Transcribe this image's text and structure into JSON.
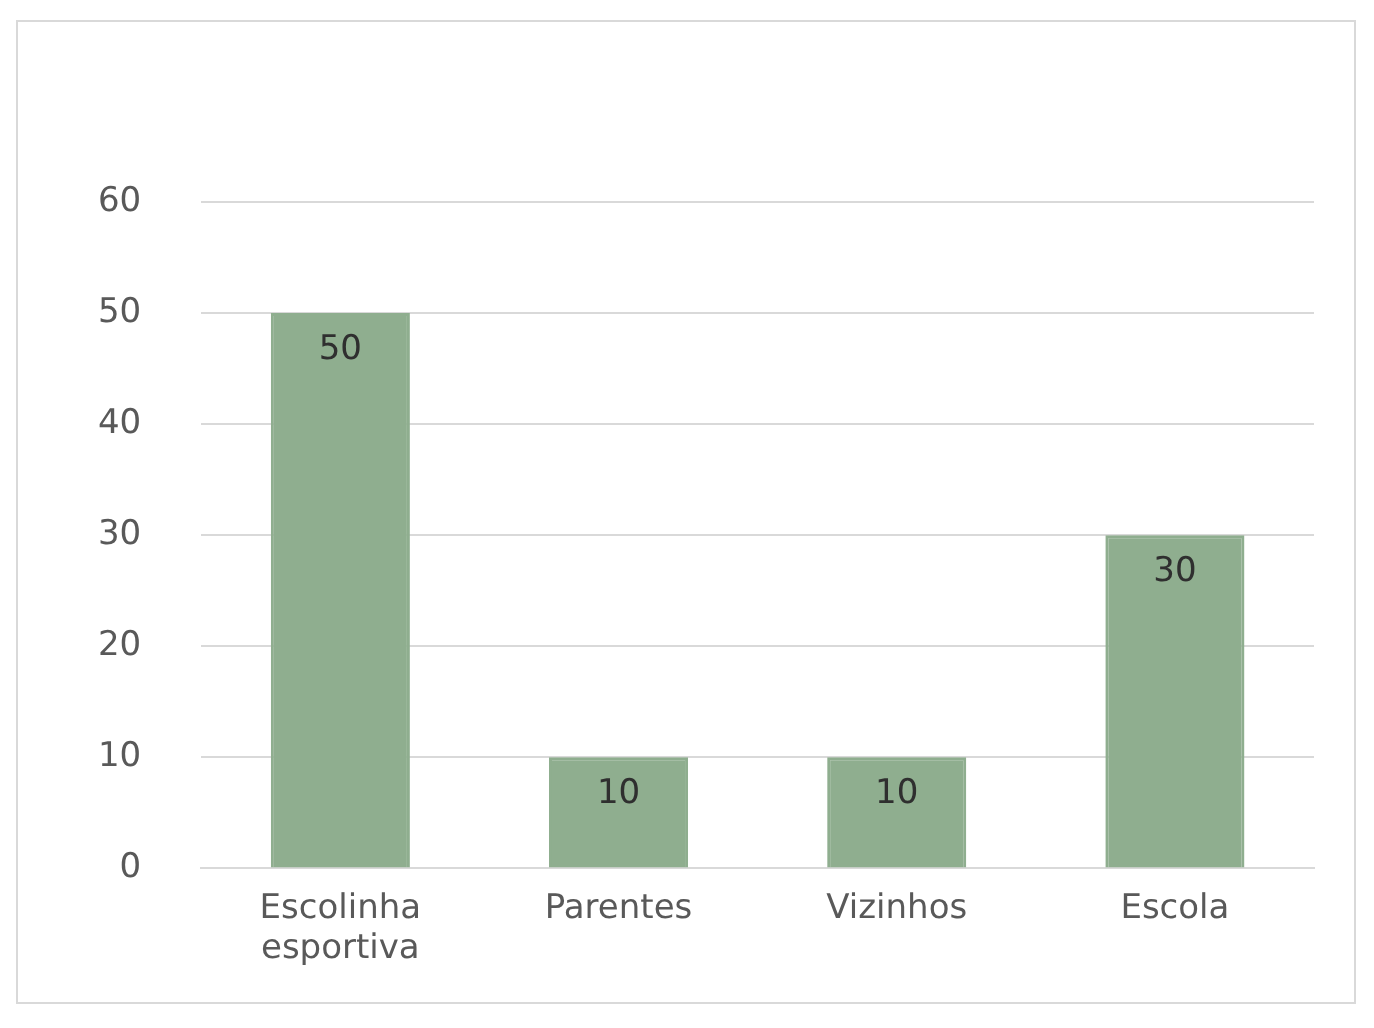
{
  "chart_data": {
    "type": "bar",
    "categories": [
      "Escolinha esportiva",
      "Parentes",
      "Vizinhos",
      "Escola"
    ],
    "values": [
      50,
      10,
      10,
      30
    ],
    "color": "#8fae8f",
    "ylim": [
      0,
      60
    ],
    "yticks": [
      0,
      10,
      20,
      30,
      40,
      50,
      60
    ],
    "grid": "y",
    "data_labels": true,
    "legend": false
  }
}
